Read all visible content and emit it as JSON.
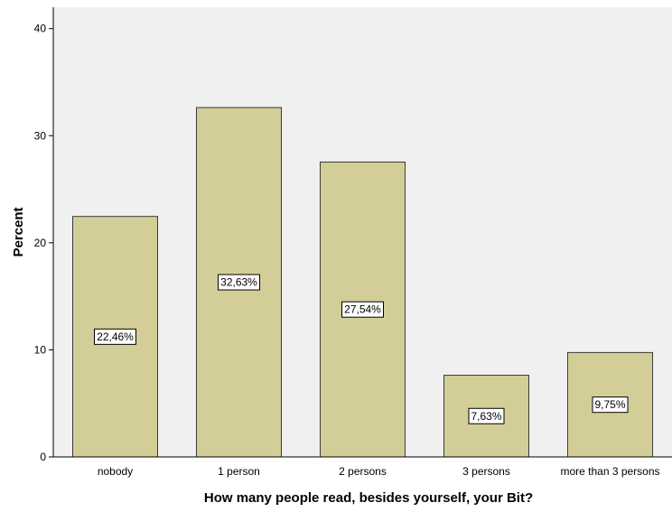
{
  "chart_data": {
    "type": "bar",
    "categories": [
      "nobody",
      "1 person",
      "2 persons",
      "3 persons",
      "more than 3 persons"
    ],
    "values": [
      22.46,
      32.63,
      27.54,
      7.63,
      9.75
    ],
    "data_labels": [
      "22,46%",
      "32,63%",
      "27,54%",
      "7,63%",
      "9,75%"
    ],
    "xlabel": "How many people read, besides yourself, your Bit?",
    "ylabel": "Percent",
    "ylim": [
      0,
      42
    ],
    "yticks": [
      0,
      10,
      20,
      30,
      40
    ],
    "grid": false,
    "colors": {
      "plot_background": "#f0f0f0",
      "bar_fill": "#d3ce97",
      "bar_stroke": "#3a3a3a",
      "axis": "#000000"
    }
  }
}
